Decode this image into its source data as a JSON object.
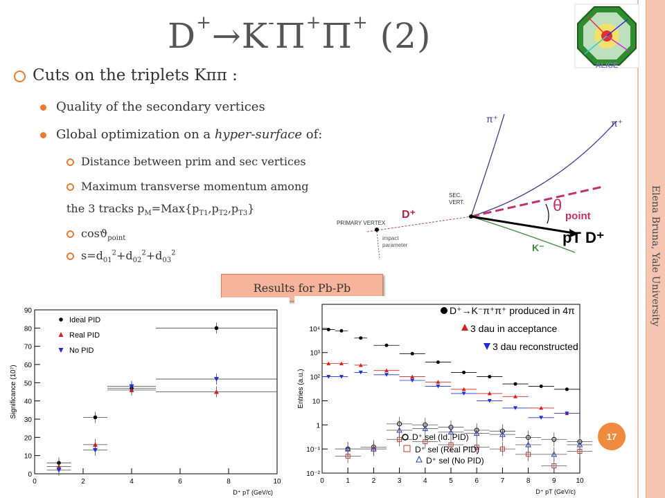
{
  "title": {
    "main": "D",
    "sup1": "+",
    "arrow": "→",
    "k": "K",
    "sup2": "-",
    "pi1": "Π",
    "sup3": "+",
    "pi2": "Π",
    "sup4": "+",
    "suffix": " (2)"
  },
  "side_text": "Elena Bruna, Yale University",
  "page_number": "17",
  "bullets": {
    "b1": "Cuts on the triplets Kππ :",
    "b2a": "Quality of the secondary vertices",
    "b2b_pre": "Global optimization on a ",
    "b2b_em": "hyper-surface",
    "b2b_post": " of:",
    "b3a": "Distance between prim and sec vertices",
    "b3b": "Maximum transverse momentum among",
    "b3b_cont_pre": "the 3 tracks p",
    "b3b_cont_sub": "M",
    "b3b_cont_mid": "=Max{p",
    "b3b_cont_t1": "T1",
    "b3b_cont_t2": "T2",
    "b3b_cont_t3": "T3",
    "b3c_pre": "cosϑ",
    "b3c_sub": "point",
    "b3d": "s=d",
    "b3d_s1": "01",
    "b3d_s2": "02",
    "b3d_s3": "03",
    "sq": "2"
  },
  "results_box": "Results for Pb-Pb",
  "diagram": {
    "pi_plus_1": "π⁺",
    "pi_plus_2": "π⁺",
    "sec_vert": "SEC.",
    "sec_vert2": "VERT.",
    "primary_vertex": "PRIMARY VERTEX",
    "d_plus": "D⁺",
    "impact": "impact",
    "parameter": "parameter",
    "k_minus": "K⁻",
    "theta_point": "θ",
    "theta_sub": "point",
    "pt_label": "pT D⁺"
  },
  "chart_data": [
    {
      "type": "scatter",
      "ylabel": "Significance (10⁷)",
      "xlabel": "D⁺ pT (GeV/c)",
      "xlim": [
        0,
        10
      ],
      "ylim": [
        0,
        90
      ],
      "yticks": [
        "0",
        "10",
        "20",
        "30",
        "40",
        "50",
        "60",
        "70",
        "80",
        "90"
      ],
      "xticks": [
        "0",
        "2",
        "4",
        "6",
        "8",
        "10"
      ],
      "legend_position": "top-left",
      "colors": {
        "ideal": "#000000",
        "real": "#d62020",
        "no": "#1f2fd0"
      },
      "series": [
        {
          "name": "Ideal PID",
          "x": [
            1,
            2.5,
            4,
            7.5
          ],
          "y": [
            6,
            31,
            47,
            80
          ]
        },
        {
          "name": "Real PID",
          "x": [
            1,
            2.5,
            4,
            7.5
          ],
          "y": [
            4,
            16,
            46,
            45
          ]
        },
        {
          "name": "No PID",
          "x": [
            1,
            2.5,
            4,
            7.5
          ],
          "y": [
            2,
            13,
            48,
            52
          ]
        }
      ]
    },
    {
      "type": "scatter",
      "ylabel": "Entries (a.u.)",
      "xlabel": "D⁺ pT (GeV/c)",
      "xlim": [
        0,
        10
      ],
      "ylim": [
        0.01,
        100000
      ],
      "yscale": "log",
      "xticks": [
        "0",
        "1",
        "2",
        "3",
        "4",
        "5",
        "6",
        "7",
        "8",
        "9",
        "10"
      ],
      "yticks": [
        "10⁻²",
        "10⁻¹",
        "1",
        "10",
        "10²",
        "10³",
        "10⁴"
      ],
      "legend_top": [
        "D⁺→K⁻π⁺π⁺ produced in 4π",
        "3 dau in acceptance",
        "3 dau reconstructed"
      ],
      "legend_bottom": [
        "D⁺ sel (Id. PID)",
        "D⁺ sel (Real PID)",
        "D⁺ sel (No PID)"
      ],
      "series": [
        {
          "name": "D⁺→K⁻π⁺π⁺ produced in 4π",
          "x": [
            0.25,
            0.75,
            1.5,
            2.5,
            3.5,
            4.5,
            5.5,
            6.5,
            7.5,
            8.5,
            9.5
          ],
          "y": [
            9000,
            8000,
            4000,
            2000,
            900,
            400,
            150,
            100,
            50,
            40,
            30
          ]
        },
        {
          "name": "3 dau in acceptance",
          "x": [
            0.25,
            0.75,
            1.5,
            2.5,
            3.5,
            4.5,
            5.5,
            6.5,
            7.5,
            8.5,
            9.5
          ],
          "y": [
            350,
            350,
            300,
            180,
            100,
            60,
            30,
            20,
            15,
            5,
            3
          ]
        },
        {
          "name": "3 dau reconstructed",
          "x": [
            0.25,
            0.75,
            1.5,
            2.5,
            3.5,
            4.5,
            5.5,
            6.5,
            7.5,
            8.5,
            9.5
          ],
          "y": [
            100,
            100,
            150,
            120,
            70,
            40,
            20,
            10,
            5,
            2,
            3
          ]
        },
        {
          "name": "D⁺ sel (Id. PID)",
          "x": [
            1,
            2,
            3,
            4,
            5,
            6,
            7,
            8,
            9,
            10
          ],
          "y": [
            0.1,
            0.12,
            1.1,
            1.0,
            0.8,
            0.6,
            0.55,
            0.3,
            0.25,
            0.2
          ]
        },
        {
          "name": "D⁺ sel (Real PID)",
          "x": [
            1,
            2,
            3,
            4,
            5,
            6,
            7,
            8,
            9,
            10
          ],
          "y": [
            0.05,
            0.1,
            0.25,
            0.2,
            0.15,
            0.12,
            0.1,
            0.06,
            0.02,
            0.08
          ]
        },
        {
          "name": "D⁺ sel (No PID)",
          "x": [
            1,
            2,
            3,
            4,
            5,
            6,
            7,
            8,
            9,
            10
          ],
          "y": [
            0.1,
            0.1,
            0.6,
            0.7,
            0.5,
            0.45,
            0.4,
            0.15,
            0.06,
            0.15
          ]
        }
      ]
    }
  ]
}
